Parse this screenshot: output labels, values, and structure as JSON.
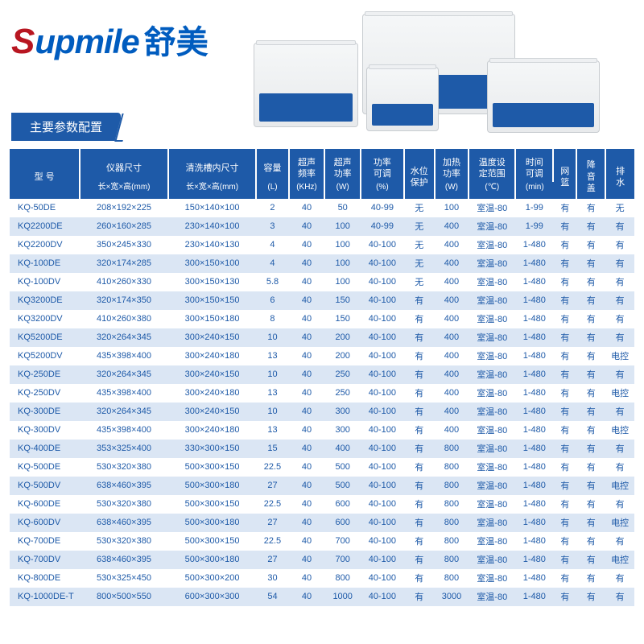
{
  "brand": {
    "s": "S",
    "upmile": "upmile",
    "chinese": "舒美"
  },
  "section_title": "主要参数配置",
  "columns": [
    {
      "top": "型 号",
      "sub": ""
    },
    {
      "top": "仪器尺寸",
      "sub": "长×宽×高(mm)"
    },
    {
      "top": "清洗槽内尺寸",
      "sub": "长×宽×高(mm)"
    },
    {
      "top": "容量",
      "sub": "(L)"
    },
    {
      "top": "超声\n频率",
      "sub": "(KHz)"
    },
    {
      "top": "超声\n功率",
      "sub": "(W)"
    },
    {
      "top": "功率\n可调",
      "sub": "(%)"
    },
    {
      "top": "水位\n保护",
      "sub": ""
    },
    {
      "top": "加热\n功率",
      "sub": "(W)"
    },
    {
      "top": "温度设\n定范围",
      "sub": "(℃)"
    },
    {
      "top": "时间\n可调",
      "sub": "(min)"
    },
    {
      "top": "网\n篮",
      "sub": ""
    },
    {
      "top": "降\n音\n盖",
      "sub": ""
    },
    {
      "top": "排\n水",
      "sub": ""
    }
  ],
  "rows": [
    [
      "KQ-50DE",
      "208×192×225",
      "150×140×100",
      "2",
      "40",
      "50",
      "40-99",
      "无",
      "100",
      "室温-80",
      "1-99",
      "有",
      "有",
      "无"
    ],
    [
      "KQ2200DE",
      "260×160×285",
      "230×140×100",
      "3",
      "40",
      "100",
      "40-99",
      "无",
      "400",
      "室温-80",
      "1-99",
      "有",
      "有",
      "有"
    ],
    [
      "KQ2200DV",
      "350×245×330",
      "230×140×130",
      "4",
      "40",
      "100",
      "40-100",
      "无",
      "400",
      "室温-80",
      "1-480",
      "有",
      "有",
      "有"
    ],
    [
      "KQ-100DE",
      "320×174×285",
      "300×150×100",
      "4",
      "40",
      "100",
      "40-100",
      "无",
      "400",
      "室温-80",
      "1-480",
      "有",
      "有",
      "有"
    ],
    [
      "KQ-100DV",
      "410×260×330",
      "300×150×130",
      "5.8",
      "40",
      "100",
      "40-100",
      "无",
      "400",
      "室温-80",
      "1-480",
      "有",
      "有",
      "有"
    ],
    [
      "KQ3200DE",
      "320×174×350",
      "300×150×150",
      "6",
      "40",
      "150",
      "40-100",
      "有",
      "400",
      "室温-80",
      "1-480",
      "有",
      "有",
      "有"
    ],
    [
      "KQ3200DV",
      "410×260×380",
      "300×150×180",
      "8",
      "40",
      "150",
      "40-100",
      "有",
      "400",
      "室温-80",
      "1-480",
      "有",
      "有",
      "有"
    ],
    [
      "KQ5200DE",
      "320×264×345",
      "300×240×150",
      "10",
      "40",
      "200",
      "40-100",
      "有",
      "400",
      "室温-80",
      "1-480",
      "有",
      "有",
      "有"
    ],
    [
      "KQ5200DV",
      "435×398×400",
      "300×240×180",
      "13",
      "40",
      "200",
      "40-100",
      "有",
      "400",
      "室温-80",
      "1-480",
      "有",
      "有",
      "电控"
    ],
    [
      "KQ-250DE",
      "320×264×345",
      "300×240×150",
      "10",
      "40",
      "250",
      "40-100",
      "有",
      "400",
      "室温-80",
      "1-480",
      "有",
      "有",
      "有"
    ],
    [
      "KQ-250DV",
      "435×398×400",
      "300×240×180",
      "13",
      "40",
      "250",
      "40-100",
      "有",
      "400",
      "室温-80",
      "1-480",
      "有",
      "有",
      "电控"
    ],
    [
      "KQ-300DE",
      "320×264×345",
      "300×240×150",
      "10",
      "40",
      "300",
      "40-100",
      "有",
      "400",
      "室温-80",
      "1-480",
      "有",
      "有",
      "有"
    ],
    [
      "KQ-300DV",
      "435×398×400",
      "300×240×180",
      "13",
      "40",
      "300",
      "40-100",
      "有",
      "400",
      "室温-80",
      "1-480",
      "有",
      "有",
      "电控"
    ],
    [
      "KQ-400DE",
      "353×325×400",
      "330×300×150",
      "15",
      "40",
      "400",
      "40-100",
      "有",
      "800",
      "室温-80",
      "1-480",
      "有",
      "有",
      "有"
    ],
    [
      "KQ-500DE",
      "530×320×380",
      "500×300×150",
      "22.5",
      "40",
      "500",
      "40-100",
      "有",
      "800",
      "室温-80",
      "1-480",
      "有",
      "有",
      "有"
    ],
    [
      "KQ-500DV",
      "638×460×395",
      "500×300×180",
      "27",
      "40",
      "500",
      "40-100",
      "有",
      "800",
      "室温-80",
      "1-480",
      "有",
      "有",
      "电控"
    ],
    [
      "KQ-600DE",
      "530×320×380",
      "500×300×150",
      "22.5",
      "40",
      "600",
      "40-100",
      "有",
      "800",
      "室温-80",
      "1-480",
      "有",
      "有",
      "有"
    ],
    [
      "KQ-600DV",
      "638×460×395",
      "500×300×180",
      "27",
      "40",
      "600",
      "40-100",
      "有",
      "800",
      "室温-80",
      "1-480",
      "有",
      "有",
      "电控"
    ],
    [
      "KQ-700DE",
      "530×320×380",
      "500×300×150",
      "22.5",
      "40",
      "700",
      "40-100",
      "有",
      "800",
      "室温-80",
      "1-480",
      "有",
      "有",
      "有"
    ],
    [
      "KQ-700DV",
      "638×460×395",
      "500×300×180",
      "27",
      "40",
      "700",
      "40-100",
      "有",
      "800",
      "室温-80",
      "1-480",
      "有",
      "有",
      "电控"
    ],
    [
      "KQ-800DE",
      "530×325×450",
      "500×300×200",
      "30",
      "40",
      "800",
      "40-100",
      "有",
      "800",
      "室温-80",
      "1-480",
      "有",
      "有",
      "有"
    ],
    [
      "KQ-1000DE-T",
      "800×500×550",
      "600×300×300",
      "54",
      "40",
      "1000",
      "40-100",
      "有",
      "3000",
      "室温-80",
      "1-480",
      "有",
      "有",
      "有"
    ]
  ],
  "style": {
    "header_bg": "#1e5aa8",
    "text_color": "#1e5aa8",
    "alt_row_bg": "#dbe6f4",
    "brand_red": "#b81621",
    "brand_blue": "#005cbf",
    "font_size_body": 11,
    "font_size_header": 11
  }
}
